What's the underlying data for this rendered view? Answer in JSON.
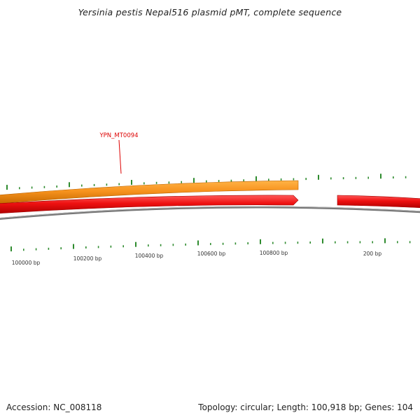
{
  "title": "Yersinia pestis Nepal516 plasmid pMT, complete sequence",
  "gene_label": "YPN_MT0094",
  "position_labels": [
    "100000 bp",
    "100200 bp",
    "100400 bp",
    "100600 bp",
    "100800 bp",
    "200 bp"
  ],
  "footer": {
    "accession": "Accession: NC_008118",
    "summary": "Topology: circular; Length: 100,918 bp; Genes: 104"
  },
  "colors": {
    "forward_strand": "#f7931e",
    "reverse_strand": "#ee1111",
    "backbone": "#888888",
    "ticks": "#2e8b2e",
    "gene_label": "#dd0000"
  }
}
